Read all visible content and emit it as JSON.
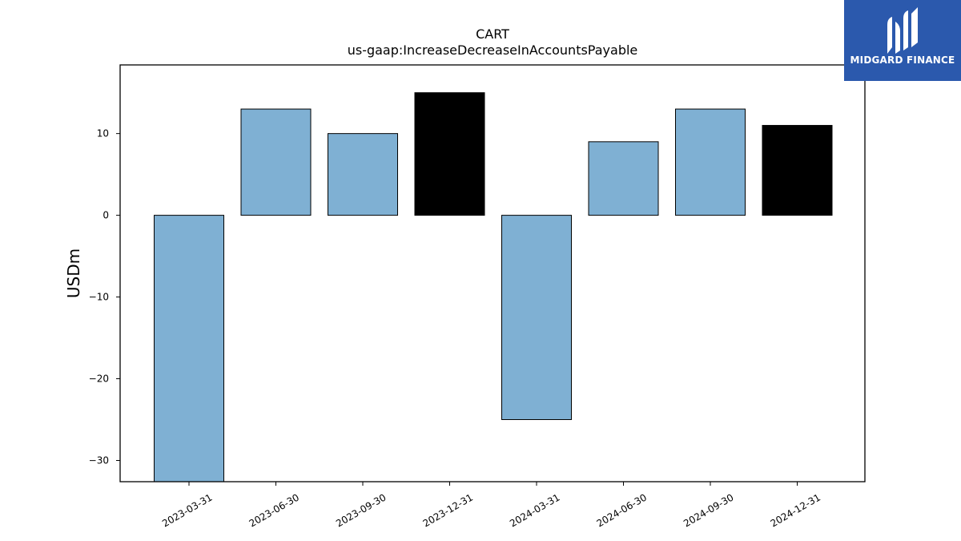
{
  "chart_data": {
    "type": "bar",
    "title": "CART",
    "subtitle": "us-gaap:IncreaseDecreaseInAccountsPayable",
    "xlabel": "",
    "ylabel": "USDm",
    "categories": [
      "2023-03-31",
      "2023-06-30",
      "2023-09-30",
      "2023-12-31",
      "2024-03-31",
      "2024-06-30",
      "2024-09-30",
      "2024-12-31"
    ],
    "values": [
      -33,
      13,
      10,
      15,
      -25,
      9,
      13,
      11
    ],
    "bar_colors": [
      "#7fb0d3",
      "#7fb0d3",
      "#7fb0d3",
      "#000000",
      "#7fb0d3",
      "#7fb0d3",
      "#7fb0d3",
      "#000000"
    ],
    "ylim": [
      -32.6,
      18.4
    ],
    "yticks": [
      -30,
      -20,
      -10,
      0,
      10
    ],
    "grid": false
  },
  "logo": {
    "text": "MIDGARD FINANCE",
    "background": "#2b59ad",
    "icon": "midgard-logo-icon"
  }
}
